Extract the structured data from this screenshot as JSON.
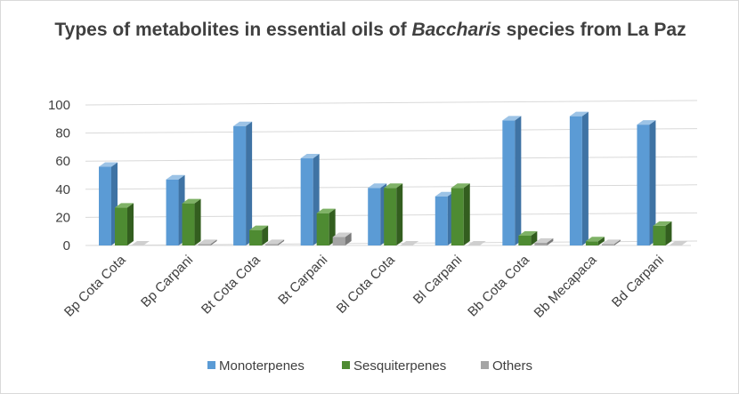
{
  "chart_data": {
    "type": "bar",
    "title_parts": [
      "Types of metabolites in essential oils of ",
      "Baccharis",
      " species from La Paz"
    ],
    "xlabel": "",
    "ylabel": "",
    "ylim": [
      0,
      100
    ],
    "yticks": [
      "0",
      "20",
      "40",
      "60",
      "80",
      "100"
    ],
    "grid": true,
    "legend_position": "bottom",
    "style": "3d-clustered-column",
    "categories": [
      "Bp Cota Cota",
      "Bp Carpani",
      "Bt Cota Cota",
      "Bt Carpani",
      "Bl Cota Cota",
      "Bl Carpani",
      "Bb Cota Cota",
      "Bb Mecapaca",
      "Bd Carpani"
    ],
    "series": [
      {
        "name": "Monoterpenes",
        "color": "#5b9bd5",
        "side": "#3f73a4",
        "top": "#9cc3e6",
        "values": [
          56,
          47,
          85,
          62,
          41,
          35,
          89,
          92,
          86
        ]
      },
      {
        "name": "Sesquiterpenes",
        "color": "#4e8b32",
        "side": "#335e1f",
        "top": "#7fb266",
        "values": [
          27,
          30,
          11,
          23,
          41,
          41,
          7,
          3,
          14
        ]
      },
      {
        "name": "Others",
        "color": "#a5a5a5",
        "side": "#7a7a7a",
        "top": "#cfcfcf",
        "values": [
          0,
          1,
          1,
          6,
          0,
          0,
          2,
          1,
          0
        ]
      }
    ]
  }
}
